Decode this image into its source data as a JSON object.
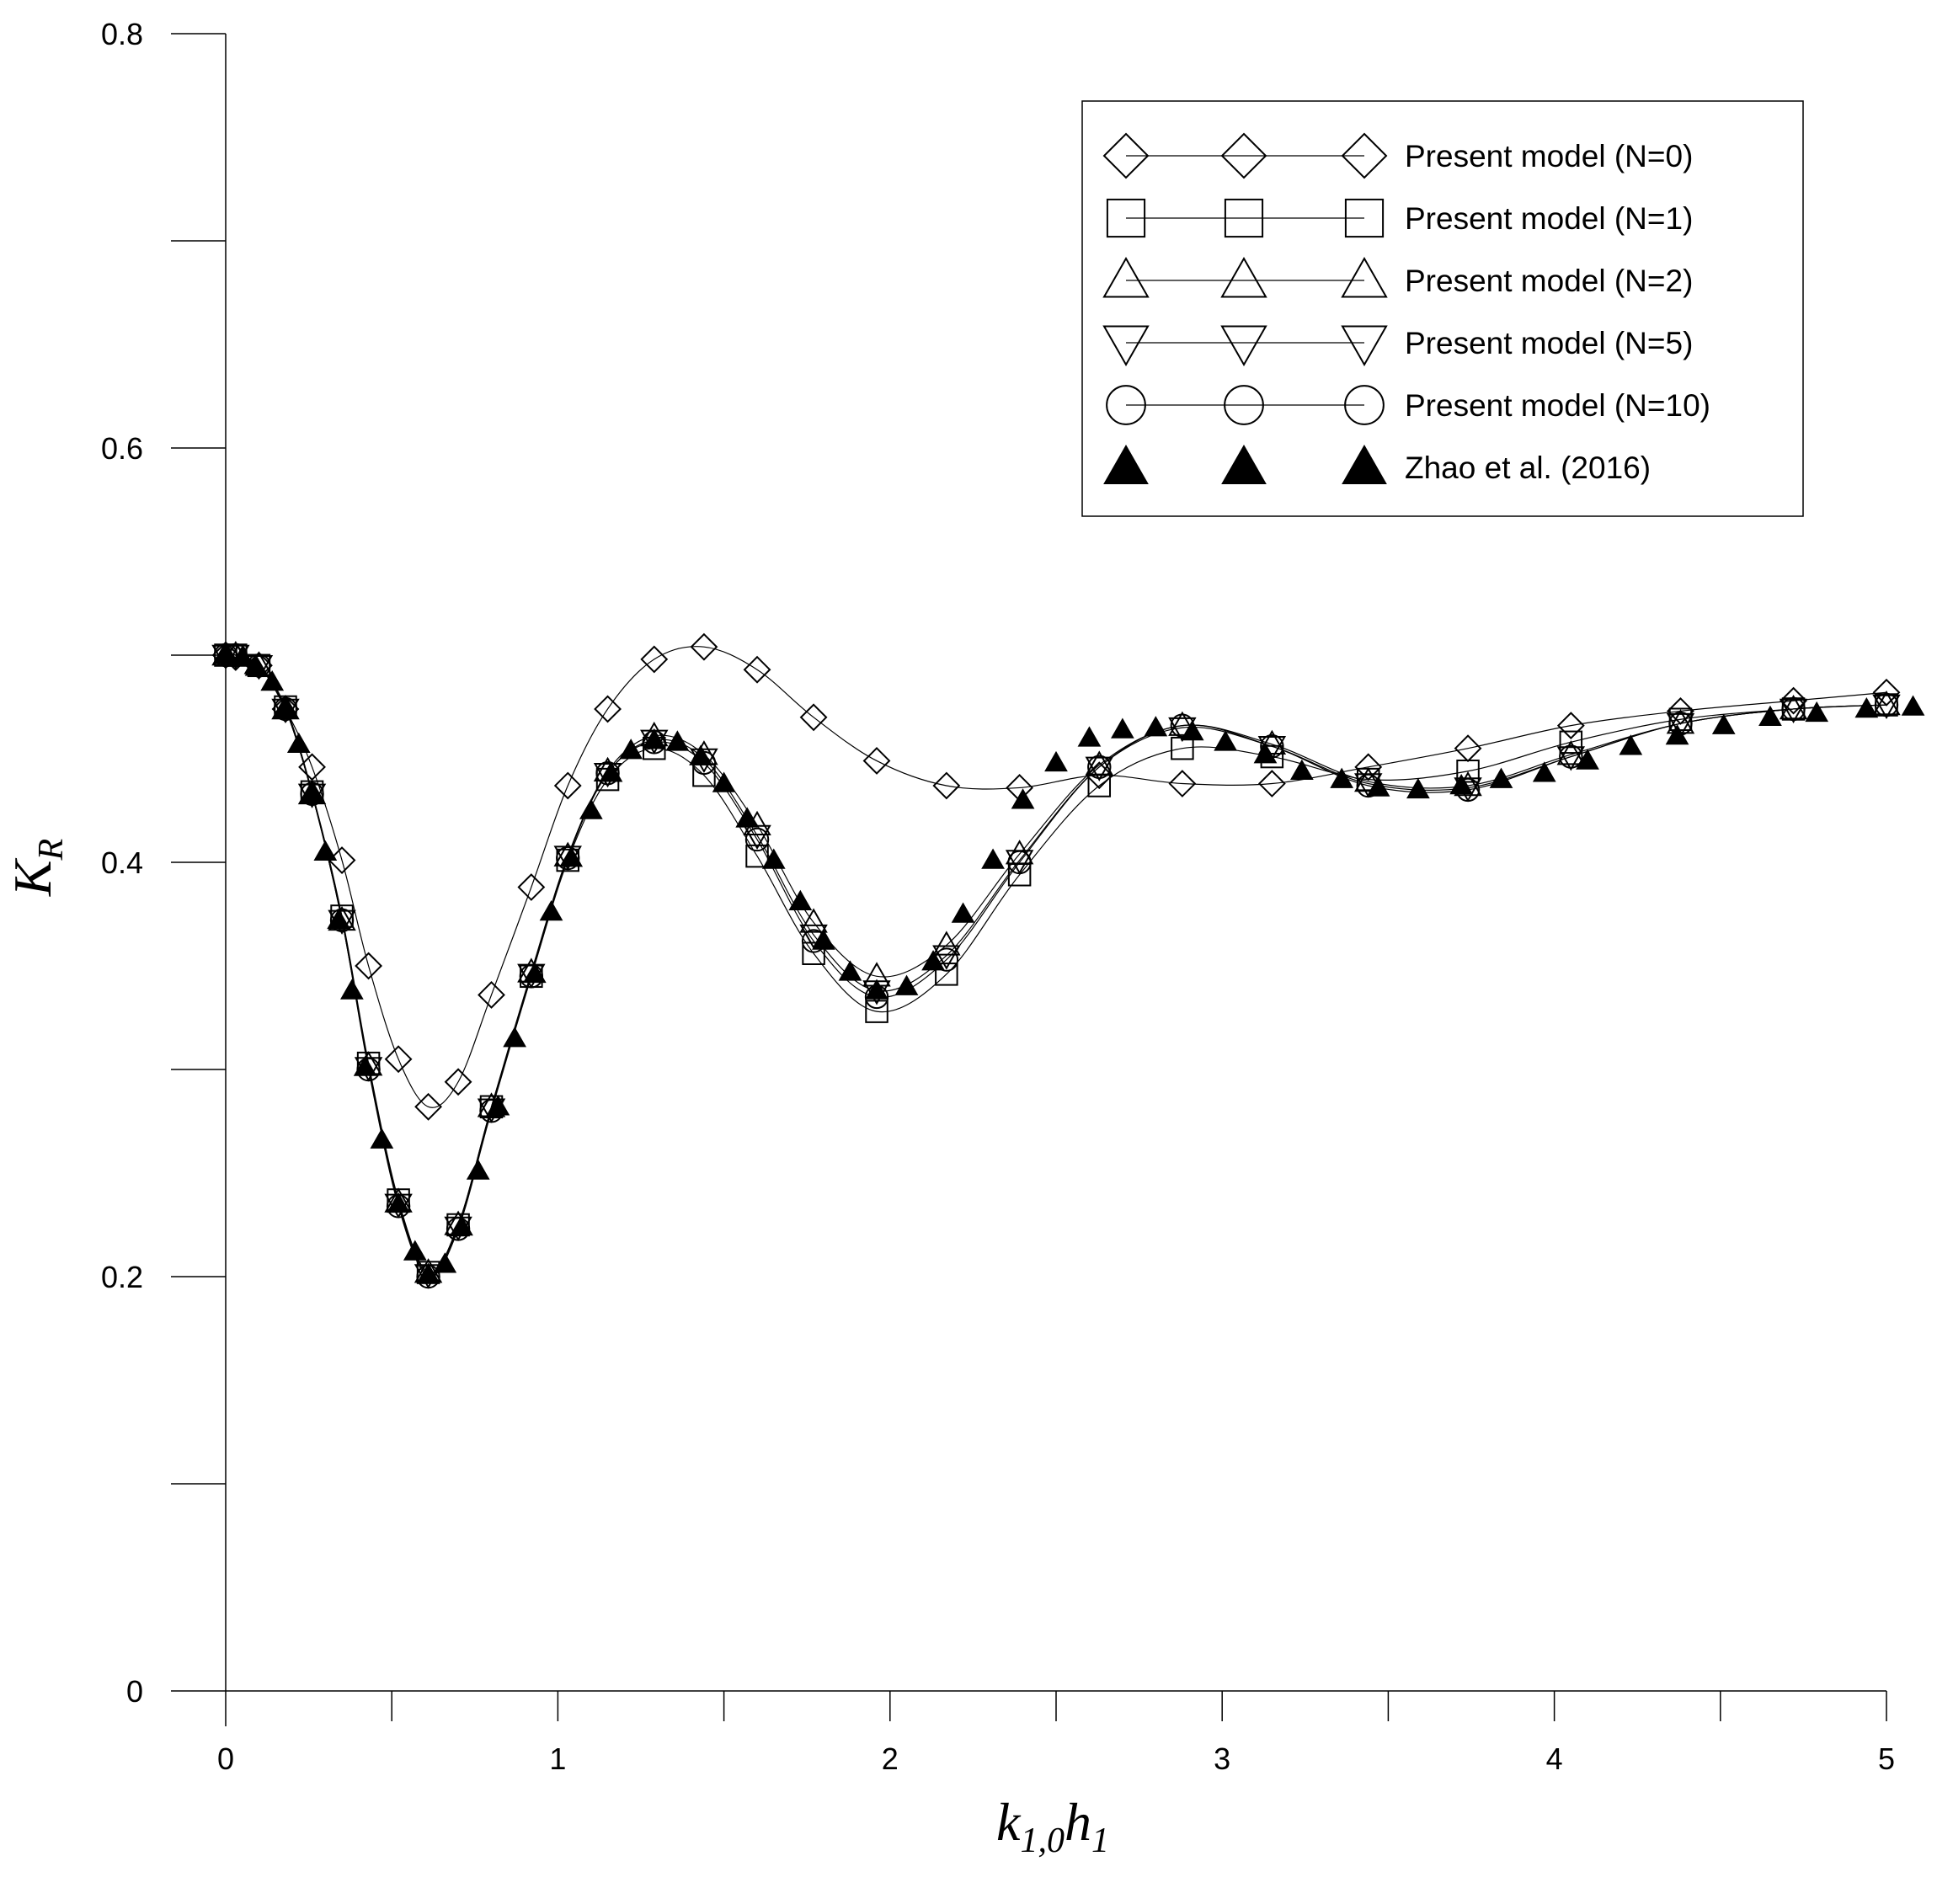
{
  "chart_data": {
    "type": "line",
    "xlabel": {
      "main": "k",
      "sub": "1,0",
      "main2": "h",
      "sub2": "1"
    },
    "ylabel": {
      "main": "K",
      "sub": "R"
    },
    "xlim": [
      0,
      5
    ],
    "ylim": [
      0,
      0.8
    ],
    "x_ticks": [
      "0",
      "1",
      "2",
      "3",
      "4",
      "5"
    ],
    "y_ticks": [
      "0",
      "0.2",
      "0.4",
      "0.6",
      "0.8"
    ],
    "legend_position": "top-right",
    "series": [
      {
        "name": "Present model (N=0)",
        "marker": "diamond",
        "line": true,
        "x": [
          0,
          0.03,
          0.1,
          0.18,
          0.26,
          0.35,
          0.43,
          0.52,
          0.61,
          0.7,
          0.8,
          0.92,
          1.03,
          1.15,
          1.29,
          1.44,
          1.6,
          1.77,
          1.96,
          2.17,
          2.39,
          2.63,
          2.88,
          3.15,
          3.44,
          3.74,
          4.05,
          4.38,
          4.72,
          5.0
        ],
        "y": [
          0.5,
          0.499,
          0.495,
          0.474,
          0.446,
          0.401,
          0.35,
          0.305,
          0.282,
          0.294,
          0.336,
          0.388,
          0.437,
          0.474,
          0.498,
          0.504,
          0.493,
          0.47,
          0.449,
          0.437,
          0.436,
          0.442,
          0.438,
          0.438,
          0.446,
          0.455,
          0.466,
          0.473,
          0.478,
          0.482
        ]
      },
      {
        "name": "Present model (N=1)",
        "marker": "square",
        "line": true,
        "x": [
          0,
          0.03,
          0.1,
          0.18,
          0.26,
          0.35,
          0.43,
          0.52,
          0.61,
          0.7,
          0.8,
          0.92,
          1.03,
          1.15,
          1.29,
          1.44,
          1.6,
          1.77,
          1.96,
          2.17,
          2.39,
          2.63,
          2.88,
          3.15,
          3.44,
          3.74,
          4.05,
          4.38,
          4.72,
          5.0
        ],
        "y": [
          0.5,
          0.5,
          0.495,
          0.475,
          0.434,
          0.374,
          0.303,
          0.237,
          0.202,
          0.225,
          0.282,
          0.345,
          0.401,
          0.44,
          0.455,
          0.442,
          0.403,
          0.356,
          0.328,
          0.346,
          0.394,
          0.437,
          0.455,
          0.451,
          0.44,
          0.444,
          0.458,
          0.469,
          0.474,
          0.476
        ]
      },
      {
        "name": "Present model (N=2)",
        "marker": "triangle-up",
        "line": true,
        "x": [
          0,
          0.03,
          0.1,
          0.18,
          0.26,
          0.35,
          0.43,
          0.52,
          0.61,
          0.7,
          0.8,
          0.92,
          1.03,
          1.15,
          1.29,
          1.44,
          1.6,
          1.77,
          1.96,
          2.17,
          2.39,
          2.63,
          2.88,
          3.15,
          3.44,
          3.74,
          4.05,
          4.38,
          4.72,
          5.0
        ],
        "y": [
          0.5,
          0.5,
          0.495,
          0.474,
          0.433,
          0.372,
          0.302,
          0.236,
          0.202,
          0.225,
          0.282,
          0.347,
          0.403,
          0.444,
          0.461,
          0.452,
          0.418,
          0.371,
          0.345,
          0.36,
          0.404,
          0.447,
          0.466,
          0.457,
          0.439,
          0.437,
          0.452,
          0.467,
          0.474,
          0.476
        ]
      },
      {
        "name": "Present model (N=5)",
        "marker": "triangle-down",
        "line": true,
        "x": [
          0,
          0.03,
          0.1,
          0.18,
          0.26,
          0.35,
          0.43,
          0.52,
          0.61,
          0.7,
          0.8,
          0.92,
          1.03,
          1.15,
          1.29,
          1.44,
          1.6,
          1.77,
          1.96,
          2.17,
          2.39,
          2.63,
          2.88,
          3.15,
          3.44,
          3.74,
          4.05,
          4.38,
          4.72,
          5.0
        ],
        "y": [
          0.5,
          0.5,
          0.495,
          0.474,
          0.433,
          0.372,
          0.301,
          0.235,
          0.201,
          0.224,
          0.281,
          0.346,
          0.403,
          0.443,
          0.459,
          0.45,
          0.413,
          0.365,
          0.338,
          0.355,
          0.401,
          0.446,
          0.465,
          0.456,
          0.438,
          0.436,
          0.451,
          0.467,
          0.474,
          0.476
        ]
      },
      {
        "name": "Present model (N=10)",
        "marker": "circle",
        "line": true,
        "x": [
          0,
          0.03,
          0.1,
          0.18,
          0.26,
          0.35,
          0.43,
          0.52,
          0.61,
          0.7,
          0.8,
          0.92,
          1.03,
          1.15,
          1.29,
          1.44,
          1.6,
          1.77,
          1.96,
          2.17,
          2.39,
          2.63,
          2.88,
          3.15,
          3.44,
          3.74,
          4.05,
          4.38,
          4.72,
          5.0
        ],
        "y": [
          0.5,
          0.5,
          0.495,
          0.474,
          0.433,
          0.372,
          0.3,
          0.234,
          0.2,
          0.223,
          0.28,
          0.345,
          0.402,
          0.443,
          0.458,
          0.448,
          0.411,
          0.362,
          0.335,
          0.353,
          0.4,
          0.446,
          0.466,
          0.456,
          0.437,
          0.435,
          0.451,
          0.467,
          0.474,
          0.476
        ]
      },
      {
        "name": "Zhao et al. (2016)",
        "marker": "filled-triangle",
        "line": false,
        "x": [
          0,
          0.05,
          0.09,
          0.14,
          0.18,
          0.22,
          0.26,
          0.3,
          0.34,
          0.38,
          0.42,
          0.47,
          0.52,
          0.57,
          0.61,
          0.66,
          0.71,
          0.76,
          0.82,
          0.87,
          0.93,
          0.98,
          1.04,
          1.1,
          1.16,
          1.22,
          1.29,
          1.36,
          1.43,
          1.5,
          1.57,
          1.65,
          1.73,
          1.8,
          1.88,
          1.96,
          2.05,
          2.13,
          2.22,
          2.31,
          2.4,
          2.5,
          2.6,
          2.7,
          2.8,
          2.91,
          3.01,
          3.13,
          3.24,
          3.36,
          3.47,
          3.59,
          3.72,
          3.84,
          3.97,
          4.1,
          4.23,
          4.37,
          4.51,
          4.65,
          4.79,
          4.94,
          5.08
        ],
        "y": [
          0.5,
          0.499,
          0.495,
          0.487,
          0.474,
          0.457,
          0.433,
          0.405,
          0.372,
          0.338,
          0.301,
          0.266,
          0.235,
          0.212,
          0.201,
          0.206,
          0.224,
          0.251,
          0.282,
          0.315,
          0.346,
          0.376,
          0.402,
          0.425,
          0.443,
          0.454,
          0.459,
          0.458,
          0.451,
          0.438,
          0.421,
          0.401,
          0.381,
          0.362,
          0.347,
          0.338,
          0.34,
          0.352,
          0.375,
          0.401,
          0.43,
          0.448,
          0.46,
          0.464,
          0.465,
          0.463,
          0.458,
          0.452,
          0.444,
          0.44,
          0.436,
          0.435,
          0.437,
          0.44,
          0.443,
          0.449,
          0.456,
          0.461,
          0.466,
          0.47,
          0.472,
          0.474,
          0.475
        ]
      }
    ]
  }
}
